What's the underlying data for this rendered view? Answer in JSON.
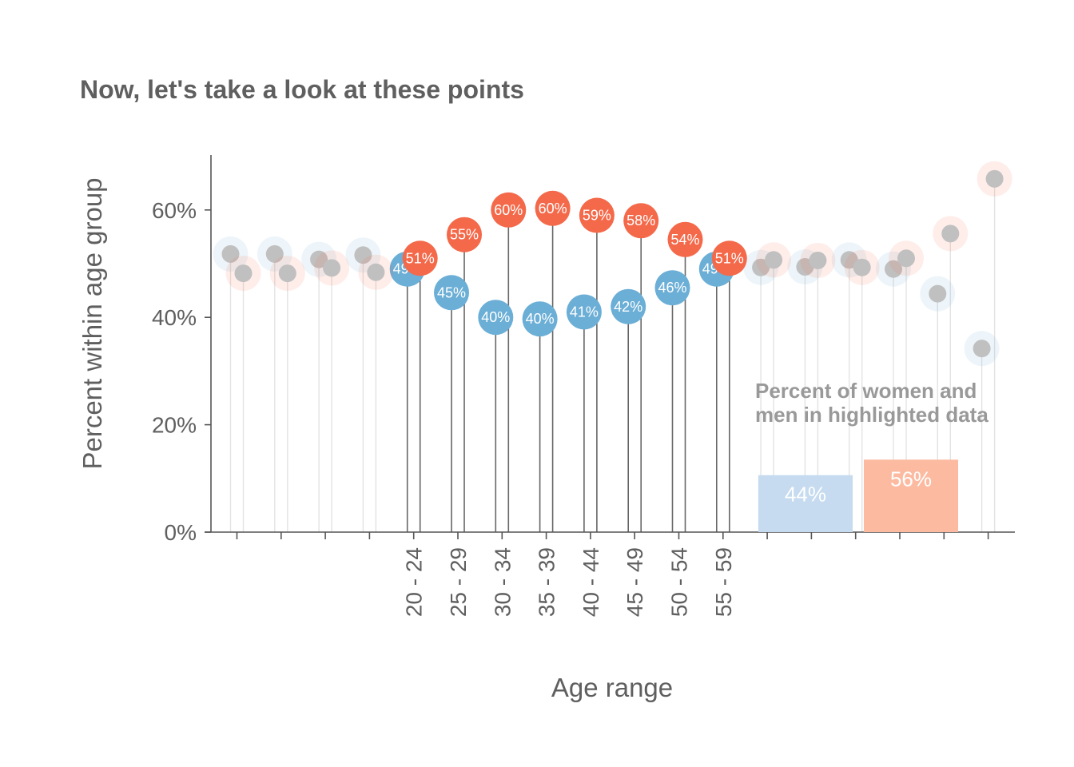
{
  "chart_data": {
    "type": "scatter",
    "title": "Now, let's take a look at these points",
    "xlabel": "Age range",
    "ylabel": "Percent within age group",
    "ylim": [
      0,
      70
    ],
    "y_ticks": [
      "0%",
      "20%",
      "40%",
      "60%"
    ],
    "y_tick_values": [
      0,
      20,
      40,
      60
    ],
    "categories": [
      "",
      "",
      "",
      "",
      "20 - 24",
      "25 - 29",
      "30 - 34",
      "35 - 39",
      "40 - 44",
      "45 - 49",
      "50 - 54",
      "55 - 59",
      "",
      "",
      "",
      "",
      "",
      ""
    ],
    "highlighted_categories": [
      "20 - 24",
      "25 - 29",
      "30 - 34",
      "35 - 39",
      "40 - 44",
      "45 - 49",
      "50 - 54",
      "55 - 59"
    ],
    "series": [
      {
        "color": "#6baed6",
        "values": [
          51.8,
          51.8,
          50.8,
          51.6,
          49,
          44.6,
          40,
          39.7,
          41,
          42,
          45.5,
          49,
          49.3,
          49.4,
          50.7,
          49.0,
          44.4,
          34.2
        ],
        "labels": [
          "",
          "",
          "",
          "",
          "49%",
          "45%",
          "40%",
          "40%",
          "41%",
          "42%",
          "46%",
          "49%",
          "",
          "",
          "",
          "",
          "",
          ""
        ]
      },
      {
        "color": "#f4694a",
        "values": [
          48.2,
          48.2,
          49.2,
          48.4,
          51,
          55.4,
          60,
          60.3,
          59,
          58,
          54.5,
          51,
          50.7,
          50.6,
          49.3,
          51.0,
          55.6,
          65.8
        ],
        "labels": [
          "",
          "",
          "",
          "",
          "51%",
          "55%",
          "60%",
          "60%",
          "59%",
          "58%",
          "54%",
          "51%",
          "",
          "",
          "",
          "",
          "",
          ""
        ]
      }
    ],
    "faded_point_color": "#c0c0c0",
    "inset": {
      "title_lines": [
        "Percent of women and",
        "men in highlighted data"
      ],
      "bars": [
        {
          "value": 44,
          "label": "44%",
          "color": "#c6dbef"
        },
        {
          "value": 56,
          "label": "56%",
          "color": "#fcbba1"
        }
      ]
    },
    "grid": false,
    "legend": "none"
  }
}
